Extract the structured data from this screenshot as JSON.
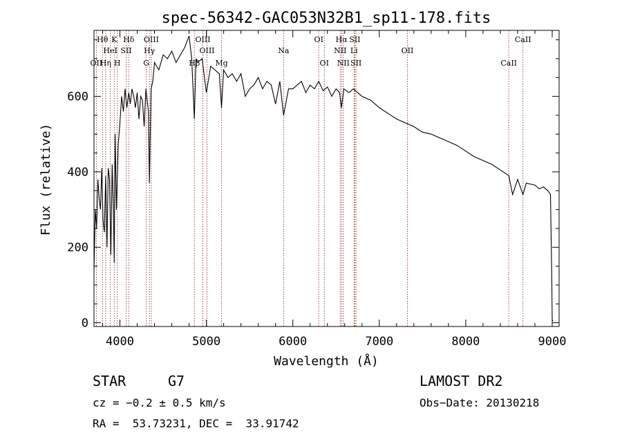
{
  "chart_data": {
    "type": "line",
    "title": "spec-56342-GAC053N32B1_sp11-178.fits",
    "xlabel": "Wavelength (Å)",
    "ylabel": "Flux (relative)",
    "xlim": [
      3700,
      9080
    ],
    "ylim": [
      -10,
      775
    ],
    "xticks": [
      4000,
      5000,
      6000,
      7000,
      8000,
      9000
    ],
    "xtick_labels": [
      "4000",
      "5000",
      "6000",
      "7000",
      "8000",
      "9000"
    ],
    "yticks": [
      0,
      200,
      400,
      600
    ],
    "ytick_labels": [
      "0",
      "200",
      "400",
      "600"
    ],
    "grid": false,
    "line_color": "#000000",
    "marker_color": "#8b1a1a",
    "lines": [
      {
        "label": "OII",
        "x": 3727,
        "row": 2
      },
      {
        "label": "Hθ",
        "x": 3798,
        "row": 0
      },
      {
        "label": "Hη",
        "x": 3835,
        "row": 2
      },
      {
        "label": "HeI",
        "x": 3889,
        "row": 1
      },
      {
        "label": "K",
        "x": 3934,
        "row": 0
      },
      {
        "label": "SII",
        "x": 4072,
        "row": 1
      },
      {
        "label": "H",
        "x": 3969,
        "row": 2
      },
      {
        "label": "Hδ",
        "x": 4102,
        "row": 0
      },
      {
        "label": "OIII",
        "x": 4363,
        "row": 0
      },
      {
        "label": "Hγ",
        "x": 4341,
        "row": 1
      },
      {
        "label": "G",
        "x": 4305,
        "row": 2
      },
      {
        "label": "OIII",
        "x": 4959,
        "row": 0
      },
      {
        "label": "OIII",
        "x": 5007,
        "row": 1
      },
      {
        "label": "Hβ",
        "x": 4861,
        "row": 2
      },
      {
        "label": "Mg",
        "x": 5175,
        "row": 2
      },
      {
        "label": "Na",
        "x": 5893,
        "row": 1
      },
      {
        "label": "OI",
        "x": 6300,
        "row": 0
      },
      {
        "label": "OI",
        "x": 6364,
        "row": 2
      },
      {
        "label": "Hα",
        "x": 6563,
        "row": 0
      },
      {
        "label": "NII",
        "x": 6548,
        "row": 1
      },
      {
        "label": "NII",
        "x": 6584,
        "row": 2
      },
      {
        "label": "SII",
        "x": 6717,
        "row": 0
      },
      {
        "label": "Li",
        "x": 6708,
        "row": 1
      },
      {
        "label": "SII",
        "x": 6731,
        "row": 2
      },
      {
        "label": "OII",
        "x": 7325,
        "row": 1
      },
      {
        "label": "CaII",
        "x": 8498,
        "row": 2
      },
      {
        "label": "CaII",
        "x": 8662,
        "row": 0
      }
    ],
    "series": [
      {
        "x": [
          3700,
          3715,
          3730,
          3745,
          3760,
          3775,
          3790,
          3805,
          3820,
          3835,
          3850,
          3865,
          3880,
          3895,
          3910,
          3925,
          3934,
          3945,
          3960,
          3969,
          3980,
          4000,
          4020,
          4040,
          4060,
          4080,
          4102,
          4120,
          4140,
          4160,
          4180,
          4200,
          4220,
          4240,
          4260,
          4280,
          4300,
          4310,
          4330,
          4341,
          4360,
          4380,
          4400,
          4450,
          4500,
          4550,
          4600,
          4650,
          4700,
          4750,
          4800,
          4830,
          4861,
          4880,
          4900,
          4950,
          5000,
          5050,
          5100,
          5150,
          5175,
          5200,
          5250,
          5300,
          5350,
          5400,
          5450,
          5500,
          5550,
          5600,
          5650,
          5700,
          5750,
          5800,
          5850,
          5893,
          5950,
          6000,
          6050,
          6100,
          6150,
          6200,
          6250,
          6300,
          6350,
          6400,
          6450,
          6500,
          6540,
          6563,
          6590,
          6650,
          6700,
          6750,
          6800,
          6850,
          6900,
          6950,
          7000,
          7100,
          7200,
          7300,
          7400,
          7500,
          7600,
          7700,
          7800,
          7900,
          8000,
          8100,
          8200,
          8300,
          8400,
          8498,
          8542,
          8600,
          8662,
          8700,
          8800,
          8850,
          8900,
          8950,
          8980,
          8995,
          9000,
          9010
        ],
        "y": [
          140,
          300,
          250,
          380,
          330,
          300,
          410,
          270,
          240,
          390,
          200,
          410,
          380,
          180,
          420,
          300,
          160,
          500,
          300,
          380,
          470,
          530,
          600,
          560,
          620,
          570,
          610,
          580,
          620,
          600,
          570,
          610,
          540,
          600,
          590,
          520,
          620,
          600,
          560,
          370,
          620,
          640,
          690,
          670,
          710,
          700,
          720,
          690,
          710,
          730,
          760,
          700,
          540,
          700,
          690,
          700,
          610,
          680,
          670,
          660,
          570,
          670,
          650,
          660,
          640,
          660,
          600,
          620,
          630,
          650,
          620,
          640,
          630,
          580,
          640,
          550,
          620,
          620,
          630,
          640,
          610,
          630,
          620,
          640,
          615,
          625,
          600,
          620,
          610,
          570,
          620,
          610,
          620,
          610,
          600,
          595,
          590,
          580,
          570,
          555,
          540,
          530,
          520,
          505,
          500,
          490,
          480,
          470,
          455,
          440,
          430,
          420,
          405,
          390,
          340,
          380,
          340,
          370,
          365,
          355,
          360,
          350,
          340,
          120,
          8,
          5
        ]
      }
    ]
  },
  "info": {
    "object_class": "STAR",
    "subclass": "G7",
    "survey": "LAMOST DR2",
    "cz": "cz = −0.2 ± 0.5 km/s",
    "obs_date": "Obs−Date: 20130218",
    "radec": "RA =  53.73231, DEC =  33.91742"
  }
}
